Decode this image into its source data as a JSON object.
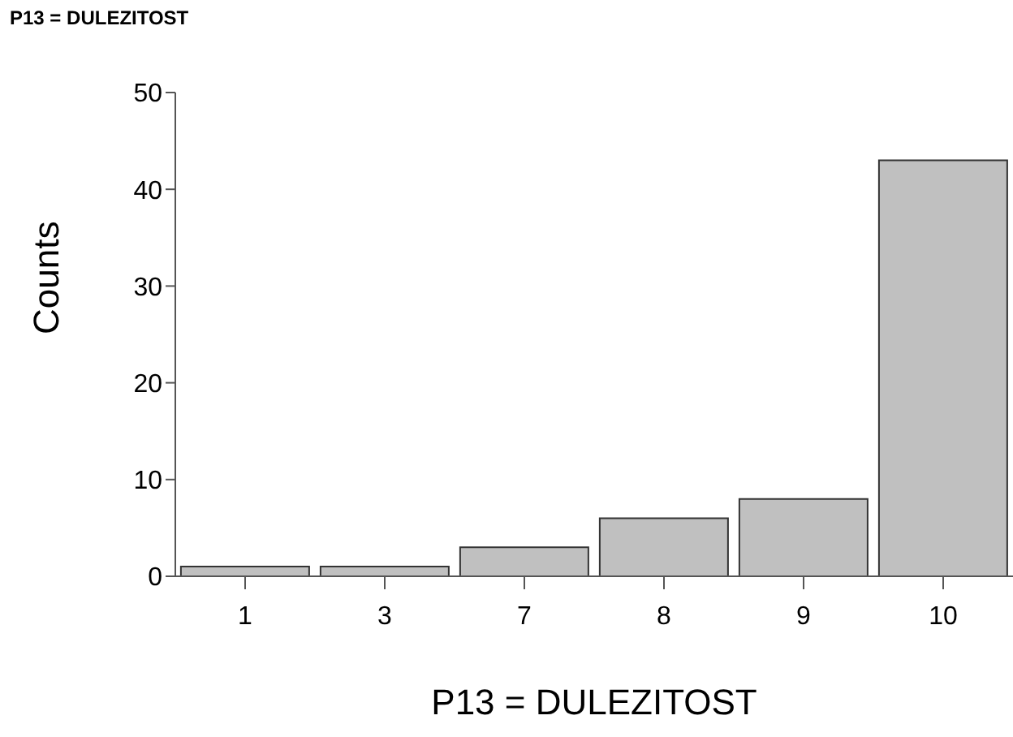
{
  "chart_data": {
    "type": "bar",
    "title": "P13 = DULEZITOST",
    "xlabel": "P13 = DULEZITOST",
    "ylabel": "Counts",
    "categories": [
      "1",
      "3",
      "7",
      "8",
      "9",
      "10"
    ],
    "values": [
      1,
      1,
      3,
      6,
      8,
      43
    ],
    "color": "#c0c0c0",
    "ylim": [
      0,
      50
    ],
    "yticks": [
      0,
      10,
      20,
      30,
      40,
      50
    ]
  }
}
